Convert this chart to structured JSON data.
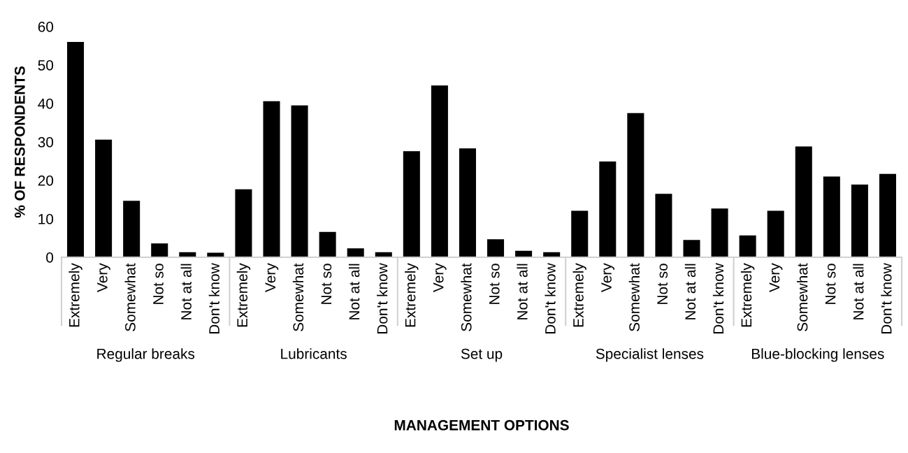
{
  "chart_data": [
    {
      "type": "bar",
      "categories": [
        "Extremely",
        "Very",
        "Somewhat",
        "Not so",
        "Not at all",
        "Don't know"
      ],
      "values": [
        56,
        30.6,
        14.7,
        3.6,
        1.3,
        1.2
      ],
      "color": "#000000",
      "xlabel": "Regular breaks",
      "ylabel": "% OF RESPONDENTS",
      "ylim": [
        0,
        60
      ],
      "yticks": [
        0,
        10,
        20,
        30,
        40,
        50,
        60
      ],
      "grid": false,
      "annotations": [
        "MANAGEMENT OPTIONS"
      ]
    },
    {
      "type": "bar",
      "categories": [
        "Extremely",
        "Very",
        "Somewhat",
        "Not so",
        "Not at all",
        "Don't know"
      ],
      "values": [
        17.7,
        40.6,
        39.5,
        6.6,
        2.3,
        1.3
      ],
      "color": "#000000",
      "xlabel": "Lubricants",
      "ylim": [
        0,
        60
      ],
      "tick_labels": "x",
      "grid": false
    },
    {
      "type": "bar",
      "categories": [
        "Extremely",
        "Very",
        "Somewhat",
        "Not so",
        "Not at all",
        "Don't know"
      ],
      "values": [
        27.6,
        44.7,
        28.3,
        4.7,
        1.7,
        1.3
      ],
      "color": "#000000",
      "xlabel": "Set up",
      "ylim": [
        0,
        60
      ],
      "tick_labels": "x",
      "grid": false
    },
    {
      "type": "bar",
      "categories": [
        "Extremely",
        "Very",
        "Somewhat",
        "Not so",
        "Not at all",
        "Don't know"
      ],
      "values": [
        12.1,
        24.9,
        37.5,
        16.5,
        4.5,
        12.7
      ],
      "color": "#000000",
      "xlabel": "Specialist lenses",
      "ylim": [
        0,
        60
      ],
      "tick_labels": "x",
      "grid": false
    },
    {
      "type": "bar",
      "categories": [
        "Extremely",
        "Very",
        "Somewhat",
        "Not so",
        "Not at all",
        "Don't know"
      ],
      "values": [
        5.7,
        12.1,
        28.8,
        21,
        18.9,
        21.7
      ],
      "color": "#000000",
      "xlabel": "Blue-blocking lenses",
      "ylim": [
        0,
        60
      ],
      "tick_labels": "x",
      "grid": false
    }
  ]
}
